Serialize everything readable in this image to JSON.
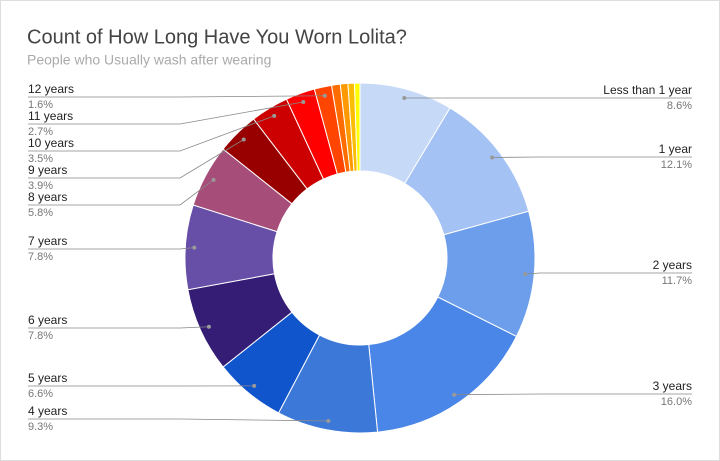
{
  "chart_data": {
    "type": "donut",
    "title": "Count of How Long Have You Worn Lolita?",
    "subtitle": "People who Usually wash after wearing",
    "categories": [
      "Less than 1 year",
      "1 year",
      "2 years",
      "3 years",
      "4 years",
      "5 years",
      "6 years",
      "7 years",
      "8 years",
      "9 years",
      "10 years",
      "11 years",
      "12 years",
      null,
      null,
      null,
      null
    ],
    "values": [
      8.6,
      12.1,
      11.7,
      16.0,
      9.3,
      6.6,
      7.8,
      7.8,
      5.8,
      3.9,
      3.5,
      2.7,
      1.6,
      0.8,
      0.7,
      0.6,
      0.5
    ],
    "value_labels": [
      "8.6%",
      "12.1%",
      "11.7%",
      "16.0%",
      "9.3%",
      "6.6%",
      "7.8%",
      "7.8%",
      "5.8%",
      "3.9%",
      "3.5%",
      "2.7%",
      "1.6%",
      null,
      null,
      null,
      null
    ],
    "colors": [
      "#c6d9f7",
      "#a4c2f4",
      "#6d9eeb",
      "#4a86e8",
      "#3c78d8",
      "#1155cc",
      "#351c75",
      "#674ea7",
      "#a64d79",
      "#980000",
      "#cc0000",
      "#ff0000",
      "#ff4500",
      "#ff6d01",
      "#ff9900",
      "#fbbc04",
      "#ffff00"
    ]
  }
}
